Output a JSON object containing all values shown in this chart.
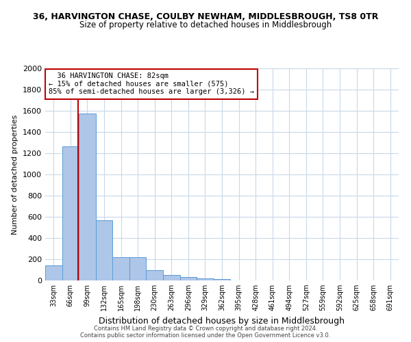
{
  "title_line1": "36, HARVINGTON CHASE, COULBY NEWHAM, MIDDLESBROUGH, TS8 0TR",
  "title_line2": "Size of property relative to detached houses in Middlesbrough",
  "xlabel": "Distribution of detached houses by size in Middlesbrough",
  "ylabel": "Number of detached properties",
  "bin_labels": [
    "33sqm",
    "66sqm",
    "99sqm",
    "132sqm",
    "165sqm",
    "198sqm",
    "230sqm",
    "263sqm",
    "296sqm",
    "329sqm",
    "362sqm",
    "395sqm",
    "428sqm",
    "461sqm",
    "494sqm",
    "527sqm",
    "559sqm",
    "592sqm",
    "625sqm",
    "658sqm",
    "691sqm"
  ],
  "bar_heights": [
    140,
    1265,
    1575,
    565,
    220,
    220,
    95,
    50,
    30,
    20,
    15,
    0,
    0,
    0,
    0,
    0,
    0,
    0,
    0,
    0,
    0
  ],
  "bar_color": "#aec6e8",
  "bar_edge_color": "#5b9bd5",
  "vline_color": "#c00000",
  "vline_x": 1.45,
  "annotation_line1": "  36 HARVINGTON CHASE: 82sqm",
  "annotation_line2": "← 15% of detached houses are smaller (575)",
  "annotation_line3": "85% of semi-detached houses are larger (3,326) →",
  "annotation_box_color": "#c00000",
  "ylim": [
    0,
    2000
  ],
  "yticks": [
    0,
    200,
    400,
    600,
    800,
    1000,
    1200,
    1400,
    1600,
    1800,
    2000
  ],
  "footer_line1": "Contains HM Land Registry data © Crown copyright and database right 2024.",
  "footer_line2": "Contains public sector information licensed under the Open Government Licence v3.0.",
  "background_color": "#ffffff",
  "grid_color": "#c8d8e8",
  "title1_fontsize": 9,
  "title2_fontsize": 8.5,
  "ylabel_fontsize": 8,
  "xlabel_fontsize": 9,
  "ytick_fontsize": 8,
  "xtick_fontsize": 7,
  "annotation_fontsize": 7.5,
  "footer_fontsize": 6
}
